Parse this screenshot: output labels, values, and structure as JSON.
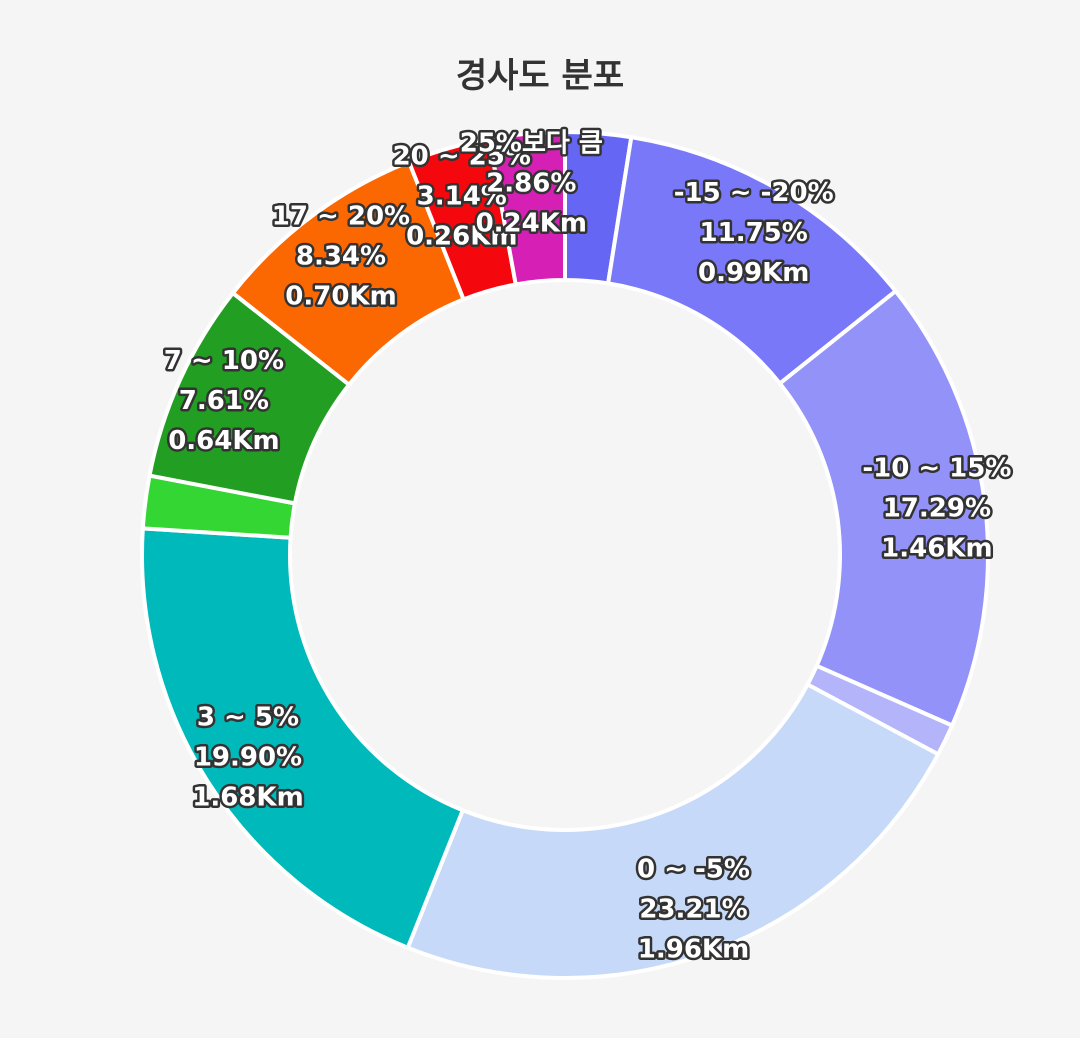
{
  "chart_data": {
    "type": "pie",
    "title": "경사도 분포",
    "hole": true,
    "slices": [
      {
        "color": "#6666f5",
        "value": 2.5,
        "range_label": "",
        "percent_label": "",
        "distance_label": ""
      },
      {
        "color": "#7878f8",
        "value": 11.75,
        "range_label": "-15 ~ -20%",
        "percent_label": "11.75%",
        "distance_label": "0.99Km"
      },
      {
        "color": "#9292f8",
        "value": 17.29,
        "range_label": "-10 ~ 15%",
        "percent_label": "17.29%",
        "distance_label": "1.46Km"
      },
      {
        "color": "#b4b4fa",
        "value": 1.2,
        "range_label": "",
        "percent_label": "",
        "distance_label": ""
      },
      {
        "color": "#c6d9f8",
        "value": 23.21,
        "range_label": "0 ~ -5%",
        "percent_label": "23.21%",
        "distance_label": "1.96Km"
      },
      {
        "color": "#00b9bb",
        "value": 19.9,
        "range_label": "3 ~ 5%",
        "percent_label": "19.90%",
        "distance_label": "1.68Km"
      },
      {
        "color": "#33d633",
        "value": 2.0,
        "range_label": "",
        "percent_label": "",
        "distance_label": ""
      },
      {
        "color": "#229e22",
        "value": 7.61,
        "range_label": "7 ~ 10%",
        "percent_label": "7.61%",
        "distance_label": "0.64Km"
      },
      {
        "color": "#fb6700",
        "value": 8.34,
        "range_label": "17 ~ 20%",
        "percent_label": "8.34%",
        "distance_label": "0.70Km"
      },
      {
        "color": "#f4080e",
        "value": 3.14,
        "range_label": "20 ~ 25%",
        "percent_label": "3.14%",
        "distance_label": "0.26Km"
      },
      {
        "color": "#d61fb5",
        "value": 2.86,
        "range_label": "25%보다 큼",
        "percent_label": "2.86%",
        "distance_label": "0.24Km"
      }
    ]
  }
}
